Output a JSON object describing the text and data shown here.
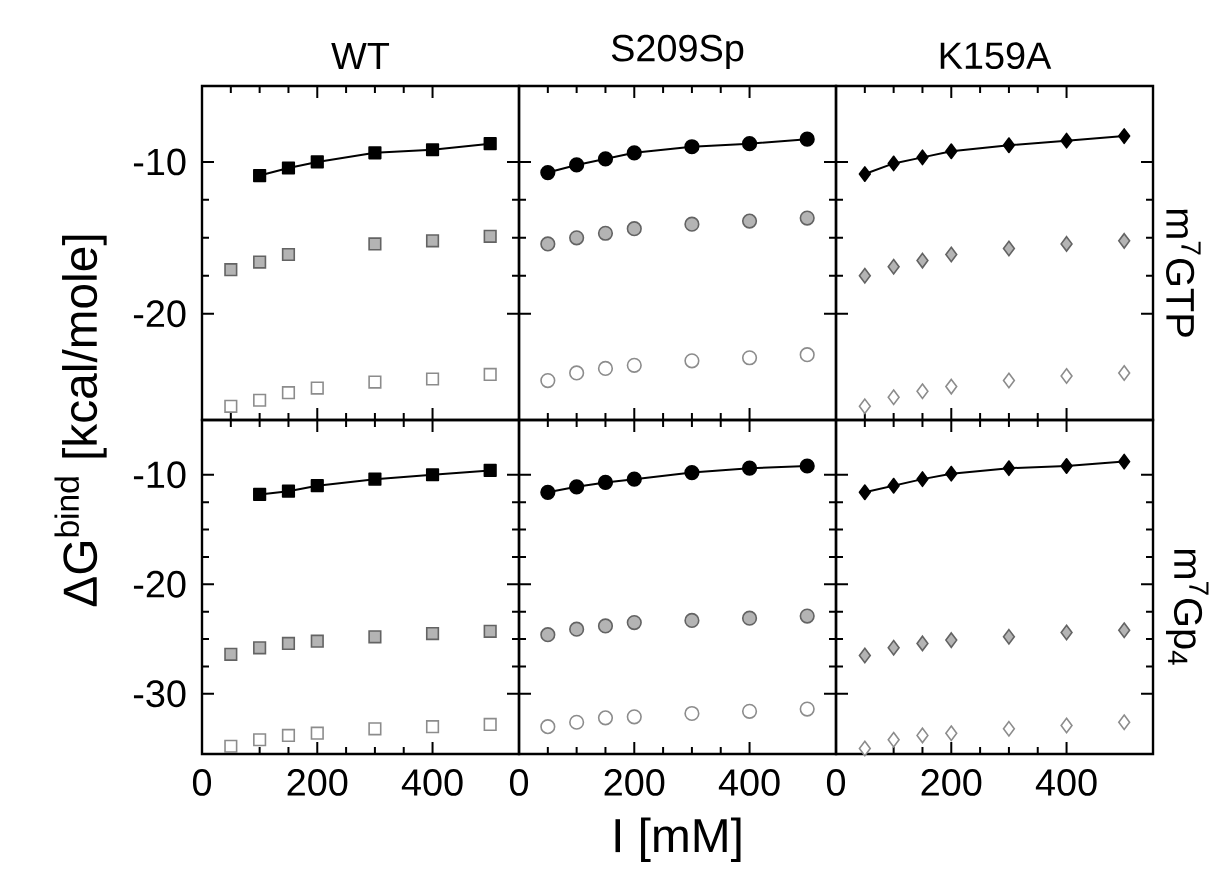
{
  "chart_data": [
    {
      "type": "scatter",
      "title": "WT",
      "ylabel": "ΔG$^{bind}$ [kcal/mole]",
      "marker": "square",
      "xlim": [
        0,
        550
      ],
      "ylim": [
        -27,
        -5
      ],
      "xticks": [
        0,
        200,
        400
      ],
      "yticks": [
        -10,
        -20
      ],
      "tick_labels": "y",
      "series": [
        {
          "type": "line",
          "color": "#000000",
          "x": [
            100,
            150,
            200,
            300,
            400,
            500
          ],
          "values": [
            -10.9,
            -10.4,
            -10.0,
            -9.4,
            -9.2,
            -8.8
          ]
        },
        {
          "color": "#b4b4b4",
          "x": [
            50,
            100,
            150,
            300,
            400,
            500
          ],
          "values": [
            -17.1,
            -16.6,
            -16.1,
            -15.4,
            -15.2,
            -14.9
          ]
        },
        {
          "color": "#ffffff",
          "x": [
            50,
            100,
            150,
            200,
            300,
            400,
            500
          ],
          "values": [
            -26.1,
            -25.7,
            -25.2,
            -24.9,
            -24.5,
            -24.3,
            -24.0
          ]
        }
      ]
    },
    {
      "type": "scatter",
      "title": "S209Sp",
      "marker": "circle",
      "xlim": [
        0,
        550
      ],
      "ylim": [
        -27,
        -5
      ],
      "xticks": [
        0,
        200,
        400
      ],
      "yticks": [
        -10,
        -20
      ],
      "tick_labels": false,
      "series": [
        {
          "type": "line",
          "color": "#000000",
          "x": [
            50,
            100,
            150,
            200,
            300,
            400,
            500
          ],
          "values": [
            -10.7,
            -10.2,
            -9.8,
            -9.4,
            -9.0,
            -8.8,
            -8.5
          ]
        },
        {
          "color": "#b4b4b4",
          "x": [
            50,
            100,
            150,
            200,
            300,
            400,
            500
          ],
          "values": [
            -15.4,
            -15.0,
            -14.7,
            -14.4,
            -14.1,
            -13.9,
            -13.7
          ]
        },
        {
          "color": "#ffffff",
          "x": [
            50,
            100,
            150,
            200,
            300,
            400,
            500
          ],
          "values": [
            -24.4,
            -23.9,
            -23.6,
            -23.4,
            -23.1,
            -22.9,
            -22.7
          ]
        }
      ]
    },
    {
      "type": "scatter",
      "title": "K159A",
      "annotations": [
        "m$^{7}$GTP"
      ],
      "marker": "diamond",
      "xlim": [
        0,
        550
      ],
      "ylim": [
        -27,
        -5
      ],
      "xticks": [
        0,
        200,
        400
      ],
      "yticks": [
        -10,
        -20
      ],
      "tick_labels": false,
      "series": [
        {
          "type": "line",
          "color": "#000000",
          "x": [
            50,
            100,
            150,
            200,
            300,
            400,
            500
          ],
          "values": [
            -10.8,
            -10.1,
            -9.7,
            -9.3,
            -8.9,
            -8.6,
            -8.3
          ]
        },
        {
          "color": "#b4b4b4",
          "x": [
            50,
            100,
            150,
            200,
            300,
            400,
            500
          ],
          "values": [
            -17.5,
            -16.9,
            -16.5,
            -16.1,
            -15.7,
            -15.4,
            -15.2
          ]
        },
        {
          "color": "#ffffff",
          "x": [
            50,
            100,
            150,
            200,
            300,
            400,
            500
          ],
          "values": [
            -26.1,
            -25.5,
            -25.1,
            -24.8,
            -24.4,
            -24.1,
            -23.9
          ]
        }
      ]
    },
    {
      "type": "scatter",
      "marker": "square",
      "xlim": [
        0,
        550
      ],
      "ylim": [
        -35.5,
        -5
      ],
      "xticks": [
        0,
        200,
        400
      ],
      "yticks": [
        -10,
        -20,
        -30
      ],
      "series": [
        {
          "type": "line",
          "color": "#000000",
          "x": [
            100,
            150,
            200,
            300,
            400,
            500
          ],
          "values": [
            -11.8,
            -11.5,
            -11.0,
            -10.4,
            -10.0,
            -9.6
          ]
        },
        {
          "color": "#b4b4b4",
          "x": [
            50,
            100,
            150,
            200,
            300,
            400,
            500
          ],
          "values": [
            -26.4,
            -25.8,
            -25.4,
            -25.2,
            -24.8,
            -24.5,
            -24.3
          ]
        },
        {
          "color": "#ffffff",
          "x": [
            50,
            100,
            150,
            200,
            300,
            400,
            500
          ],
          "values": [
            -34.8,
            -34.2,
            -33.8,
            -33.6,
            -33.2,
            -33.0,
            -32.8
          ]
        }
      ]
    },
    {
      "type": "scatter",
      "xlabel": "I [mM]",
      "marker": "circle",
      "xlim": [
        0,
        550
      ],
      "ylim": [
        -35.5,
        -5
      ],
      "xticks": [
        0,
        200,
        400
      ],
      "yticks": [
        -10,
        -20,
        -30
      ],
      "tick_labels": "x",
      "series": [
        {
          "type": "line",
          "color": "#000000",
          "x": [
            50,
            100,
            150,
            200,
            300,
            400,
            500
          ],
          "values": [
            -11.6,
            -11.1,
            -10.7,
            -10.4,
            -9.8,
            -9.4,
            -9.2
          ]
        },
        {
          "color": "#b4b4b4",
          "x": [
            50,
            100,
            150,
            200,
            300,
            400,
            500
          ],
          "values": [
            -24.6,
            -24.1,
            -23.8,
            -23.5,
            -23.3,
            -23.1,
            -22.9
          ]
        },
        {
          "color": "#ffffff",
          "x": [
            50,
            100,
            150,
            200,
            300,
            400,
            500
          ],
          "values": [
            -33.0,
            -32.6,
            -32.2,
            -32.1,
            -31.8,
            -31.6,
            -31.4
          ]
        }
      ]
    },
    {
      "type": "scatter",
      "annotations": [
        "m$^{7}$Gp$_{4}$"
      ],
      "marker": "diamond",
      "xlim": [
        0,
        550
      ],
      "ylim": [
        -35.5,
        -5
      ],
      "xticks": [
        0,
        200,
        400
      ],
      "yticks": [
        -10,
        -20,
        -30
      ],
      "tick_labels": "x",
      "series": [
        {
          "type": "line",
          "color": "#000000",
          "x": [
            50,
            100,
            150,
            200,
            300,
            400,
            500
          ],
          "values": [
            -11.6,
            -11.0,
            -10.4,
            -9.9,
            -9.4,
            -9.2,
            -8.8
          ]
        },
        {
          "color": "#b4b4b4",
          "x": [
            50,
            100,
            150,
            200,
            300,
            400,
            500
          ],
          "values": [
            -26.5,
            -25.8,
            -25.4,
            -25.1,
            -24.8,
            -24.4,
            -24.2
          ]
        },
        {
          "color": "#ffffff",
          "x": [
            50,
            100,
            150,
            200,
            300,
            400,
            500
          ],
          "values": [
            -35.0,
            -34.2,
            -33.8,
            -33.6,
            -33.2,
            -32.9,
            -32.6
          ]
        }
      ]
    }
  ]
}
